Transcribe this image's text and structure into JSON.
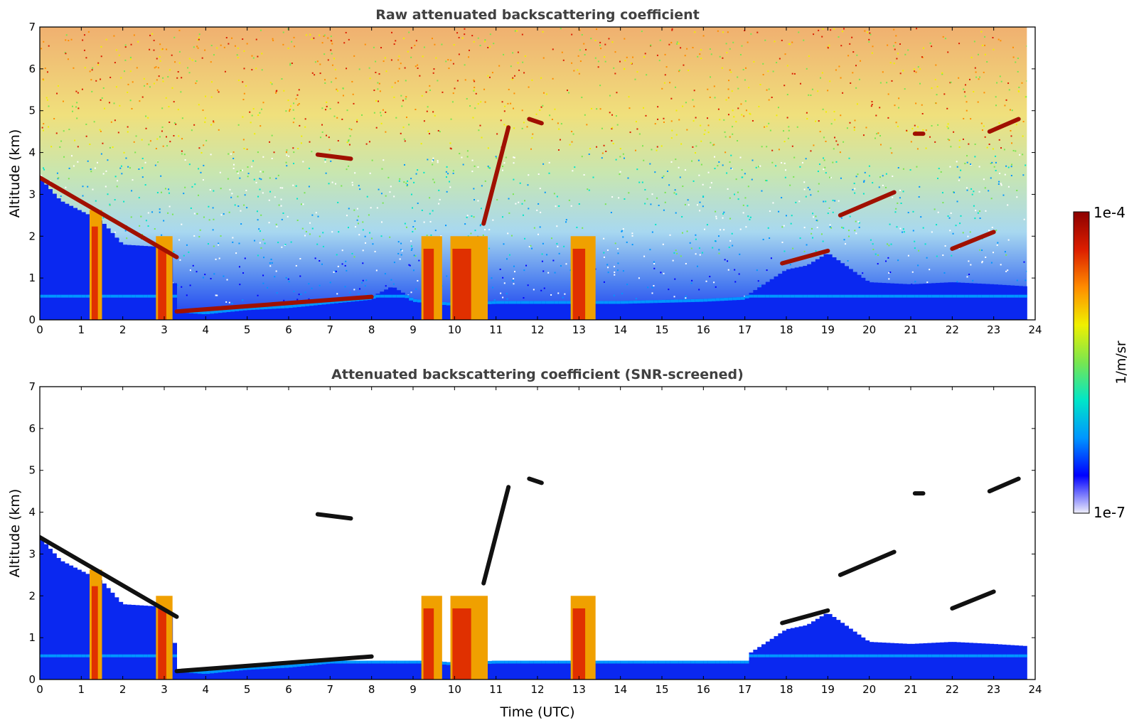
{
  "figure": {
    "colorbar": {
      "label": "1/m/sr",
      "max_label": "1e-4",
      "min_label": "1e-7",
      "scale": "log",
      "range": [
        1e-07,
        0.0001
      ],
      "colormap": [
        "#eeeefa",
        "#0000ff",
        "#0096ff",
        "#00e6c8",
        "#78e650",
        "#f0f000",
        "#ff8c00",
        "#dc1e00",
        "#8c0000"
      ]
    }
  },
  "chart_data": [
    {
      "type": "heatmap",
      "title": "Raw attenuated backscattering coefficient",
      "xlabel": "",
      "ylabel": "Altitude (km)",
      "xlim": [
        0,
        24
      ],
      "ylim": [
        0,
        7
      ],
      "xticks": [
        "0",
        "1",
        "2",
        "3",
        "4",
        "5",
        "6",
        "7",
        "8",
        "9",
        "10",
        "11",
        "12",
        "13",
        "14",
        "15",
        "16",
        "17",
        "18",
        "19",
        "20",
        "21",
        "22",
        "23",
        "24"
      ],
      "yticks": [
        "0",
        "1",
        "2",
        "3",
        "4",
        "5",
        "6",
        "7"
      ],
      "grid": false,
      "features": {
        "boundary_layer_top_km": [
          [
            0,
            3.4
          ],
          [
            0.5,
            2.85
          ],
          [
            1,
            2.6
          ],
          [
            1.5,
            2.35
          ],
          [
            2,
            1.8
          ],
          [
            2.8,
            1.75
          ],
          [
            3.2,
            1.5
          ],
          [
            3.3,
            0.25
          ],
          [
            4,
            0.2
          ],
          [
            5,
            0.3
          ],
          [
            6,
            0.35
          ],
          [
            7,
            0.45
          ],
          [
            8,
            0.55
          ],
          [
            8.5,
            0.8
          ],
          [
            9,
            0.5
          ],
          [
            10,
            0.4
          ],
          [
            11,
            0.45
          ],
          [
            12,
            0.45
          ],
          [
            13,
            0.45
          ],
          [
            14,
            0.45
          ],
          [
            16,
            0.5
          ],
          [
            17,
            0.55
          ],
          [
            18,
            1.2
          ],
          [
            18.5,
            1.3
          ],
          [
            19,
            1.6
          ],
          [
            20,
            0.9
          ],
          [
            21,
            0.85
          ],
          [
            22,
            0.9
          ],
          [
            23,
            0.85
          ],
          [
            23.8,
            0.8
          ]
        ],
        "cloud_layers_km": [
          {
            "t": [
              0,
              3.3
            ],
            "z": [
              3.4,
              1.5
            ]
          },
          {
            "t": [
              3.3,
              8.0
            ],
            "z": [
              0.2,
              0.55
            ]
          },
          {
            "t": [
              6.7,
              7.5
            ],
            "z": [
              3.95,
              3.85
            ]
          },
          {
            "t": [
              10.7,
              11.3
            ],
            "z": [
              2.3,
              4.6
            ]
          },
          {
            "t": [
              11.8,
              12.1
            ],
            "z": [
              4.8,
              4.7
            ]
          },
          {
            "t": [
              17.9,
              19.0
            ],
            "z": [
              1.35,
              1.65
            ]
          },
          {
            "t": [
              19.3,
              20.6
            ],
            "z": [
              2.5,
              3.05
            ]
          },
          {
            "t": [
              21.1,
              21.3
            ],
            "z": [
              4.45,
              4.45
            ]
          },
          {
            "t": [
              22.0,
              23.0
            ],
            "z": [
              1.7,
              2.1
            ]
          },
          {
            "t": [
              22.9,
              23.6
            ],
            "z": [
              4.5,
              4.8
            ]
          }
        ],
        "precipitation_columns_utc": [
          [
            1.2,
            1.5
          ],
          [
            2.8,
            3.2
          ],
          [
            9.2,
            9.7
          ],
          [
            9.9,
            10.8
          ],
          [
            12.8,
            13.4
          ]
        ]
      }
    },
    {
      "type": "heatmap",
      "title": "Attenuated backscattering coefficient (SNR-screened)",
      "xlabel": "Time (UTC)",
      "ylabel": "Altitude (km)",
      "xlim": [
        0,
        24
      ],
      "ylim": [
        0,
        7
      ],
      "xticks": [
        "0",
        "1",
        "2",
        "3",
        "4",
        "5",
        "6",
        "7",
        "8",
        "9",
        "10",
        "11",
        "12",
        "13",
        "14",
        "15",
        "16",
        "17",
        "18",
        "19",
        "20",
        "21",
        "22",
        "23",
        "24"
      ],
      "yticks": [
        "0",
        "1",
        "2",
        "3",
        "4",
        "5",
        "6",
        "7"
      ],
      "grid": false
    }
  ]
}
